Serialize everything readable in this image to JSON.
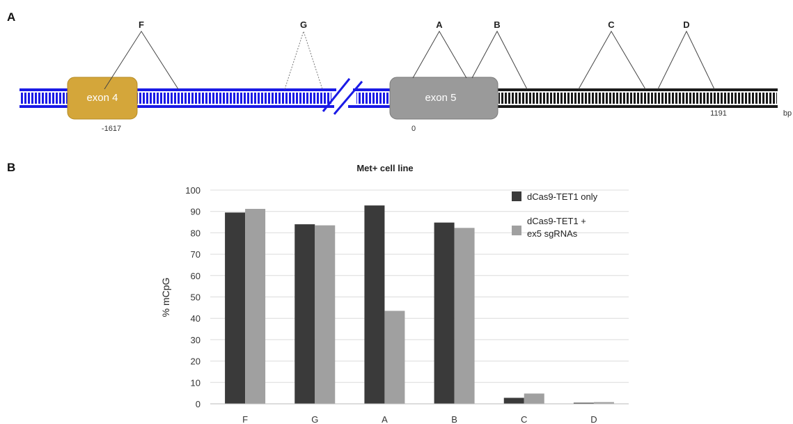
{
  "panel_a": {
    "label": "A",
    "exons": [
      {
        "name": "exon 4",
        "position": "-1617",
        "color": "#D4A63A"
      },
      {
        "name": "exon 5",
        "position": "0",
        "color": "#9A9A9A"
      }
    ],
    "end_position": "1191",
    "unit": "bp",
    "sites": [
      "F",
      "G",
      "A",
      "B",
      "C",
      "D"
    ],
    "strand_colors": {
      "upstream": "#1A1AE6",
      "downstream": "#1A1A1A"
    }
  },
  "panel_b": {
    "label": "B"
  },
  "chart_data": {
    "type": "bar",
    "title": "Met+ cell line",
    "xlabel": "",
    "ylabel": "% mCpG",
    "ylim": [
      0,
      100
    ],
    "yticks": [
      0,
      10,
      20,
      30,
      40,
      50,
      60,
      70,
      80,
      90,
      100
    ],
    "categories": [
      "F",
      "G",
      "A",
      "B",
      "C",
      "D"
    ],
    "grid": true,
    "legend_position": "top-right",
    "series": [
      {
        "name": "dCas9-TET1 only",
        "color": "#3A3A3A",
        "values": [
          89.5,
          84,
          92.8,
          84.8,
          2.8,
          0.5
        ]
      },
      {
        "name": "dCas9-TET1 +\nex5 sgRNAs",
        "color": "#A0A0A0",
        "values": [
          91.2,
          83.5,
          43.5,
          82.3,
          4.8,
          0.8
        ]
      }
    ]
  }
}
